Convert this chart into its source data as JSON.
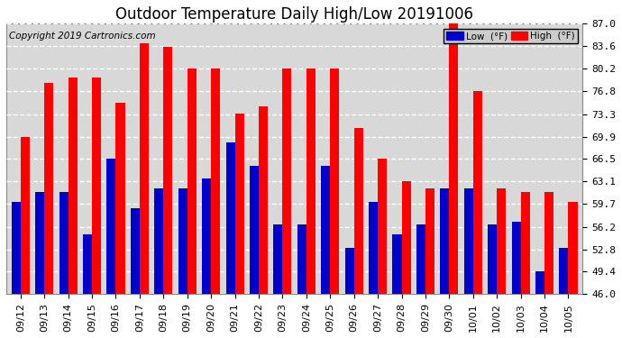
{
  "title": "Outdoor Temperature Daily High/Low 20191006",
  "copyright": "Copyright 2019 Cartronics.com",
  "dates": [
    "09/12",
    "09/13",
    "09/14",
    "09/15",
    "09/16",
    "09/17",
    "09/18",
    "09/19",
    "09/20",
    "09/21",
    "09/22",
    "09/23",
    "09/24",
    "09/25",
    "09/26",
    "09/27",
    "09/28",
    "09/29",
    "09/30",
    "10/01",
    "10/02",
    "10/03",
    "10/04",
    "10/05"
  ],
  "high": [
    69.9,
    78.0,
    78.8,
    78.8,
    75.0,
    84.0,
    83.5,
    80.2,
    80.2,
    73.4,
    74.5,
    80.2,
    80.2,
    80.2,
    71.2,
    66.5,
    63.1,
    62.0,
    87.0,
    76.8,
    62.0,
    61.5,
    61.5,
    60.0
  ],
  "low": [
    60.0,
    61.5,
    61.5,
    55.0,
    66.5,
    59.0,
    62.0,
    62.0,
    63.5,
    69.0,
    65.5,
    56.5,
    56.5,
    65.5,
    53.0,
    60.0,
    55.0,
    56.5,
    62.0,
    62.0,
    56.5,
    57.0,
    49.5,
    53.0
  ],
  "bar_width": 0.38,
  "ymin": 46.0,
  "ymax": 87.0,
  "yticks": [
    46.0,
    49.4,
    52.8,
    56.2,
    59.7,
    63.1,
    66.5,
    69.9,
    73.3,
    76.8,
    80.2,
    83.6,
    87.0
  ],
  "high_color": "#ff0000",
  "low_color": "#0000cc",
  "bg_color": "#ffffff",
  "plot_bg_color": "#d8d8d8",
  "grid_color": "#ffffff",
  "title_fontsize": 12,
  "copyright_fontsize": 7.5,
  "tick_fontsize": 8,
  "legend_label_low": "Low  (°F)",
  "legend_label_high": "High  (°F)"
}
